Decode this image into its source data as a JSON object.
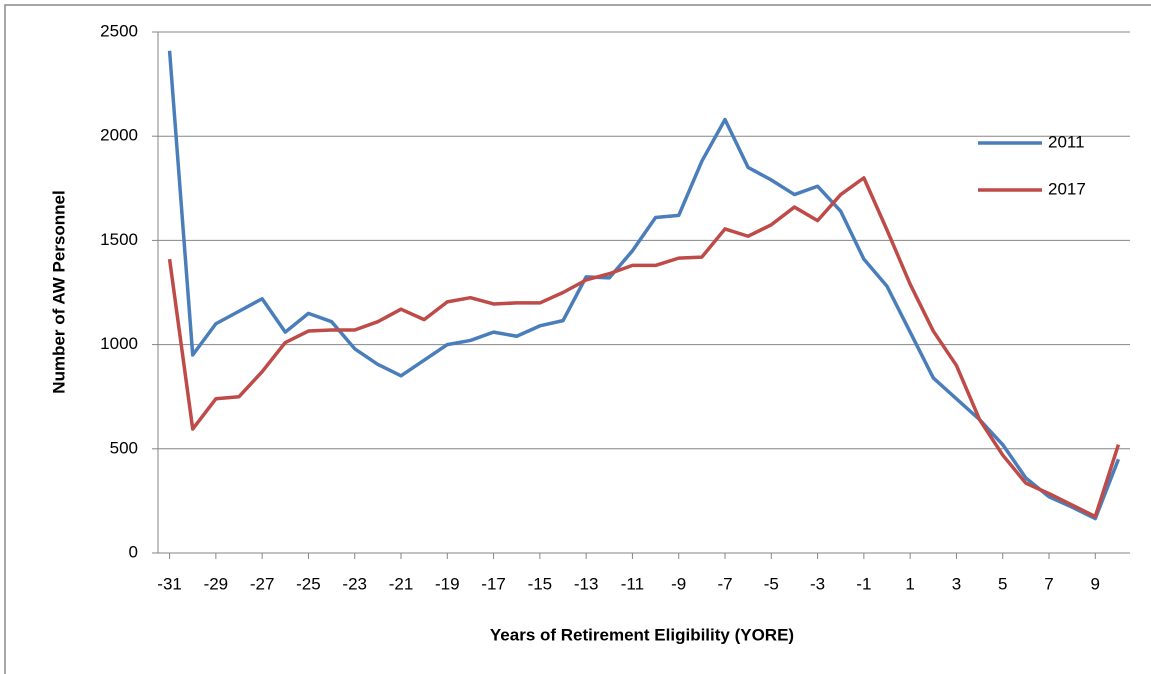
{
  "chart_data": {
    "type": "line",
    "x_label": "Years of Retirement Eligibility (YORE)",
    "y_label": "Number of AW Personnel",
    "x": [
      -31,
      -30,
      -29,
      -28,
      -27,
      -26,
      -25,
      -24,
      -23,
      -22,
      -21,
      -20,
      -19,
      -18,
      -17,
      -16,
      -15,
      -14,
      -13,
      -12,
      -11,
      -10,
      -9,
      -8,
      -7,
      -6,
      -5,
      -4,
      -3,
      -2,
      -1,
      0,
      1,
      2,
      3,
      4,
      5,
      6,
      7,
      8,
      9,
      10
    ],
    "series": [
      {
        "name": "2011",
        "color": "#4a7ebb",
        "values": [
          2410,
          950,
          1100,
          1160,
          1220,
          1060,
          1150,
          1110,
          980,
          905,
          850,
          925,
          1000,
          1020,
          1060,
          1040,
          1090,
          1115,
          1325,
          1320,
          1450,
          1610,
          1620,
          1880,
          2080,
          1850,
          1790,
          1720,
          1760,
          1640,
          1410,
          1280,
          1060,
          840,
          740,
          640,
          520,
          360,
          270,
          220,
          165,
          450
        ]
      },
      {
        "name": "2017",
        "color": "#be4b48",
        "values": [
          1410,
          595,
          740,
          750,
          870,
          1010,
          1065,
          1070,
          1070,
          1110,
          1170,
          1120,
          1205,
          1225,
          1195,
          1200,
          1200,
          1250,
          1310,
          1340,
          1380,
          1380,
          1415,
          1420,
          1555,
          1520,
          1575,
          1660,
          1595,
          1720,
          1800,
          1550,
          1290,
          1065,
          900,
          640,
          470,
          335,
          285,
          230,
          175,
          520
        ]
      }
    ],
    "xlim": [
      -31.5,
      10.5
    ],
    "xticks": [
      -31,
      -29,
      -27,
      -25,
      -23,
      -21,
      -19,
      -17,
      -15,
      -13,
      -11,
      -9,
      -7,
      -5,
      -3,
      -1,
      1,
      3,
      5,
      7,
      9
    ],
    "ylim": [
      0,
      2500
    ],
    "yticks": [
      0,
      500,
      1000,
      1500,
      2000,
      2500
    ],
    "grid": true,
    "legend": "right"
  }
}
